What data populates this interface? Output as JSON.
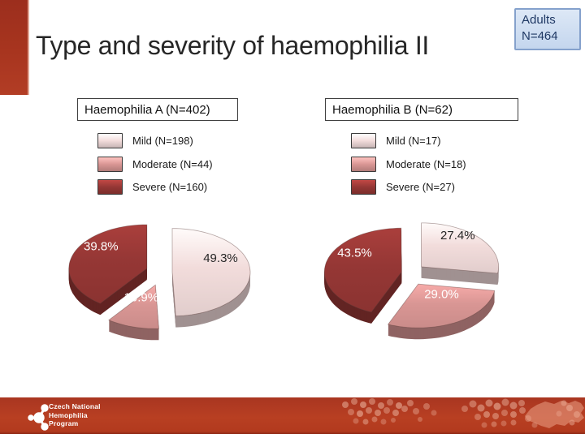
{
  "slide": {
    "title": "Type and severity of haemophilia II",
    "badge": {
      "line1": "Adults",
      "line2": "N=464"
    }
  },
  "chart_data": [
    {
      "type": "pie",
      "title": "Haemophilia A (N=402)",
      "n_total": 402,
      "categories": [
        "Mild",
        "Moderate",
        "Severe"
      ],
      "legend_labels": [
        "Mild (N=198)",
        "Moderate (N=44)",
        "Severe (N=160)"
      ],
      "counts": [
        198,
        44,
        160
      ],
      "values_percent": [
        49.3,
        10.9,
        39.8
      ],
      "slice_labels": [
        "49.3%",
        "10.9%",
        "39.8%"
      ],
      "colors": [
        "#f2dcdb",
        "#d99694",
        "#953735"
      ],
      "label_colors": [
        "#262626",
        "#ffffff",
        "#ffffff"
      ],
      "style": "3d-exploded-pie",
      "start_angle_deg": 0,
      "direction": "clockwise",
      "legend_position": "top-left"
    },
    {
      "type": "pie",
      "title": "Haemophilia B (N=62)",
      "n_total": 62,
      "categories": [
        "Mild",
        "Moderate",
        "Severe"
      ],
      "legend_labels": [
        "Mild (N=17)",
        "Moderate (N=18)",
        "Severe (N=27)"
      ],
      "counts": [
        17,
        18,
        27
      ],
      "values_percent": [
        27.4,
        29.0,
        43.5
      ],
      "slice_labels": [
        "27.4%",
        "29.0%",
        "43.5%"
      ],
      "colors": [
        "#f2dcdb",
        "#d99694",
        "#953735"
      ],
      "label_colors": [
        "#262626",
        "#ffffff",
        "#ffffff"
      ],
      "style": "3d-exploded-pie",
      "start_angle_deg": 0,
      "direction": "clockwise",
      "legend_position": "top-left"
    }
  ],
  "footer": {
    "logo_lines": [
      "Czech National",
      "Hemophilia",
      "Program"
    ]
  },
  "colors": {
    "accent_bar_red": "#a8351f",
    "footer_bar_red": "#b23a1e",
    "badge_fill": "#c9d9f0",
    "badge_border": "#85a1cc",
    "badge_text": "#1f3864",
    "title_text": "#262626",
    "pie_mild": "#f2dcdb",
    "pie_moderate": "#d99694",
    "pie_severe": "#953735"
  }
}
